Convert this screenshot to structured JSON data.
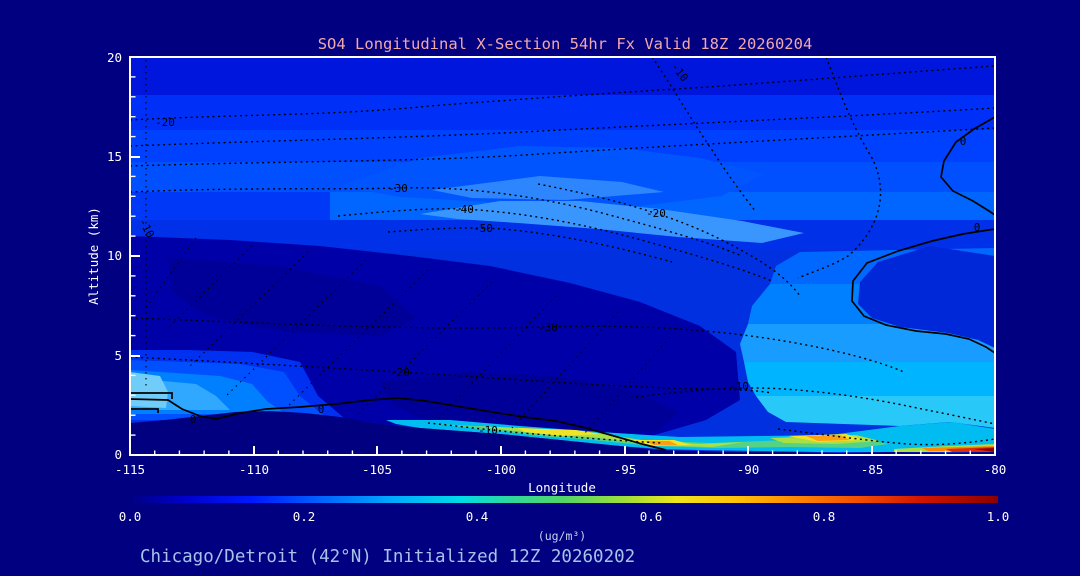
{
  "chart_data": {
    "type": "heatmap",
    "title": "SO4 Longitudinal X-Section 54hr  Fx Valid 18Z 20260204",
    "subtitle": "Chicago/Detroit (42°N) Initialized 12Z 20260202",
    "xlabel": "Longitude",
    "ylabel": "Altitude (km)",
    "units": "ug/m3",
    "xlim": [
      -115,
      -80
    ],
    "ylim": [
      0,
      20
    ],
    "x_ticks": [
      -115,
      -110,
      -105,
      -100,
      -95,
      -90,
      -85,
      -80
    ],
    "y_ticks": [
      0,
      5,
      10,
      15,
      20
    ],
    "x_tick_labels": [
      "-115",
      "-110",
      "-105",
      "-100",
      "-95",
      "-90",
      "-85",
      "-80"
    ],
    "y_tick_labels": [
      "20",
      "15",
      "10",
      "5",
      "0"
    ],
    "colorbar": {
      "label": "(ug/m³)",
      "min": 0.0,
      "max": 1.0,
      "ticks": [
        0.0,
        0.2,
        0.4,
        0.6,
        0.8,
        1.0
      ],
      "tick_labels": [
        "0.0",
        "0.2",
        "0.4",
        "0.6",
        "0.8",
        "1.0"
      ],
      "gradient": [
        "#000082",
        "#0000C8",
        "#0018FF",
        "#0063FF",
        "#00A8FF",
        "#00DCE8",
        "#2FD89A",
        "#52D668",
        "#9FDF3A",
        "#EFE51C",
        "#FFC008",
        "#FF8400",
        "#F44D00",
        "#D41400",
        "#8B0000"
      ]
    },
    "contour_labels": [
      {
        "text": "-20",
        "lon": -113.6,
        "alt": 16.7
      },
      {
        "text": "-30",
        "lon": -104.2,
        "alt": 13.4
      },
      {
        "text": "-40",
        "lon": -101.5,
        "alt": 12.4
      },
      {
        "text": "-50",
        "lon": -100.7,
        "alt": 11.4
      },
      {
        "text": "-20",
        "lon": -93.7,
        "alt": 12.2
      },
      {
        "text": "-10",
        "lon": -92.7,
        "alt": 19.2,
        "rotated": true
      },
      {
        "text": "-10",
        "lon": -114.3,
        "alt": 11.4,
        "rotated": true
      },
      {
        "text": "-30",
        "lon": -98.1,
        "alt": 6.4
      },
      {
        "text": "-20",
        "lon": -104.1,
        "alt": 4.2
      },
      {
        "text": "-10",
        "lon": -90.4,
        "alt": 3.5
      },
      {
        "text": "-10",
        "lon": -100.5,
        "alt": 1.3
      },
      {
        "text": "0",
        "lon": -112.5,
        "alt": 1.8
      },
      {
        "text": "0",
        "lon": -107.3,
        "alt": 2.3
      },
      {
        "text": "0",
        "lon": -80.7,
        "alt": 11.5
      },
      {
        "text": "0",
        "lon": -81.3,
        "alt": 15.8
      }
    ],
    "estimated_field": {
      "note": "SO4 (ug/m3) estimated from filled-contour shading; 0 = below terrain",
      "lons": [
        -115,
        -110,
        -105,
        -100,
        -95,
        -90,
        -85,
        -80
      ],
      "alts_km": [
        0,
        2,
        4,
        6,
        8,
        10,
        12,
        14,
        16,
        18,
        20
      ],
      "values": [
        [
          0,
          0,
          0.15,
          0.45,
          0.5,
          0.45,
          0.6,
          0.95
        ],
        [
          0.3,
          0.2,
          0.12,
          0.1,
          0.3,
          0.35,
          0.4,
          0.4
        ],
        [
          0.15,
          0.1,
          0.08,
          0.05,
          0.08,
          0.18,
          0.32,
          0.35
        ],
        [
          0.08,
          0.05,
          0.05,
          0.05,
          0.08,
          0.15,
          0.3,
          0.3
        ],
        [
          0.05,
          0.05,
          0.05,
          0.05,
          0.08,
          0.12,
          0.25,
          0.25
        ],
        [
          0.05,
          0.05,
          0.05,
          0.08,
          0.1,
          0.12,
          0.2,
          0.22
        ],
        [
          0.08,
          0.08,
          0.12,
          0.15,
          0.18,
          0.15,
          0.18,
          0.2
        ],
        [
          0.18,
          0.18,
          0.22,
          0.25,
          0.22,
          0.18,
          0.15,
          0.15
        ],
        [
          0.15,
          0.18,
          0.15,
          0.15,
          0.15,
          0.12,
          0.12,
          0.12
        ],
        [
          0.12,
          0.12,
          0.12,
          0.12,
          0.12,
          0.12,
          0.1,
          0.1
        ],
        [
          0.1,
          0.1,
          0.1,
          0.1,
          0.1,
          0.1,
          0.08,
          0.08
        ]
      ]
    },
    "features": [
      "Mostly blue shading (<0.2 ug/m3) through the free troposphere",
      "Broad minimum (dark blue, <0.1) from 3-12 km between -115 and -92",
      "Brighter blue enhanced layer (~0.2-0.3) near 13-16 km",
      "Shallow boundary-layer plume 0.3-0.7 hugging the terrain from -103 to -80 with yellow/orange cores near -98.5, -93.5 and -86.5",
      "Red surface maximum ~0.9-1.0 in the lowest few hundred meters near -81",
      "Pale cyan (~0.3-0.4) at the west boundary 2-4.5 km above elevated terrain",
      "Dark terrain silhouette: ~2.4 km high at -115 sloping to near sea level east of -95",
      "Dotted black overlay contours labeled 0 to -50; solid black 0-contours along the terrain and near the east edge"
    ],
    "palette": {
      "bg": "#000080",
      "band_top": "#0016DC",
      "band2": "#0030F8",
      "band3": "#0040FF",
      "band4": "#0050FF",
      "band5": "#0066FF",
      "band5_left": "#0038F8",
      "base_low": "#0030E0",
      "trans_low": "#0030E8",
      "dome": "#0055FF",
      "dome_core": "#2E86FF",
      "streak": "#3A96FF",
      "dark": "#0000A8",
      "darker": "#000098",
      "left1": "#0030F0",
      "left3": "#0080FF",
      "left4": "#30A8FF",
      "left5": "#70CCF8",
      "right3": "#0068FF",
      "right5": "#189CFF",
      "right6": "#00B4FF",
      "right7": "#28C8F8",
      "loop_dark": "#0028D8",
      "sfc_cyan": "#00BCF0",
      "sfc_green": "#55D285",
      "sfc_ygreen": "#AADF45",
      "sfc_yellow": "#F0E328",
      "sfc_orange": "#FF9E14",
      "sfc_orange2": "#FF8A00",
      "sfc_red": "#E22B08",
      "sfc_darkred": "#8F0000",
      "contour": "#000000",
      "frame": "#FFFFFF",
      "title_color": "#F2A8A8",
      "caption_color": "#A8C2E8",
      "unit_color": "#C6D2EE"
    }
  }
}
